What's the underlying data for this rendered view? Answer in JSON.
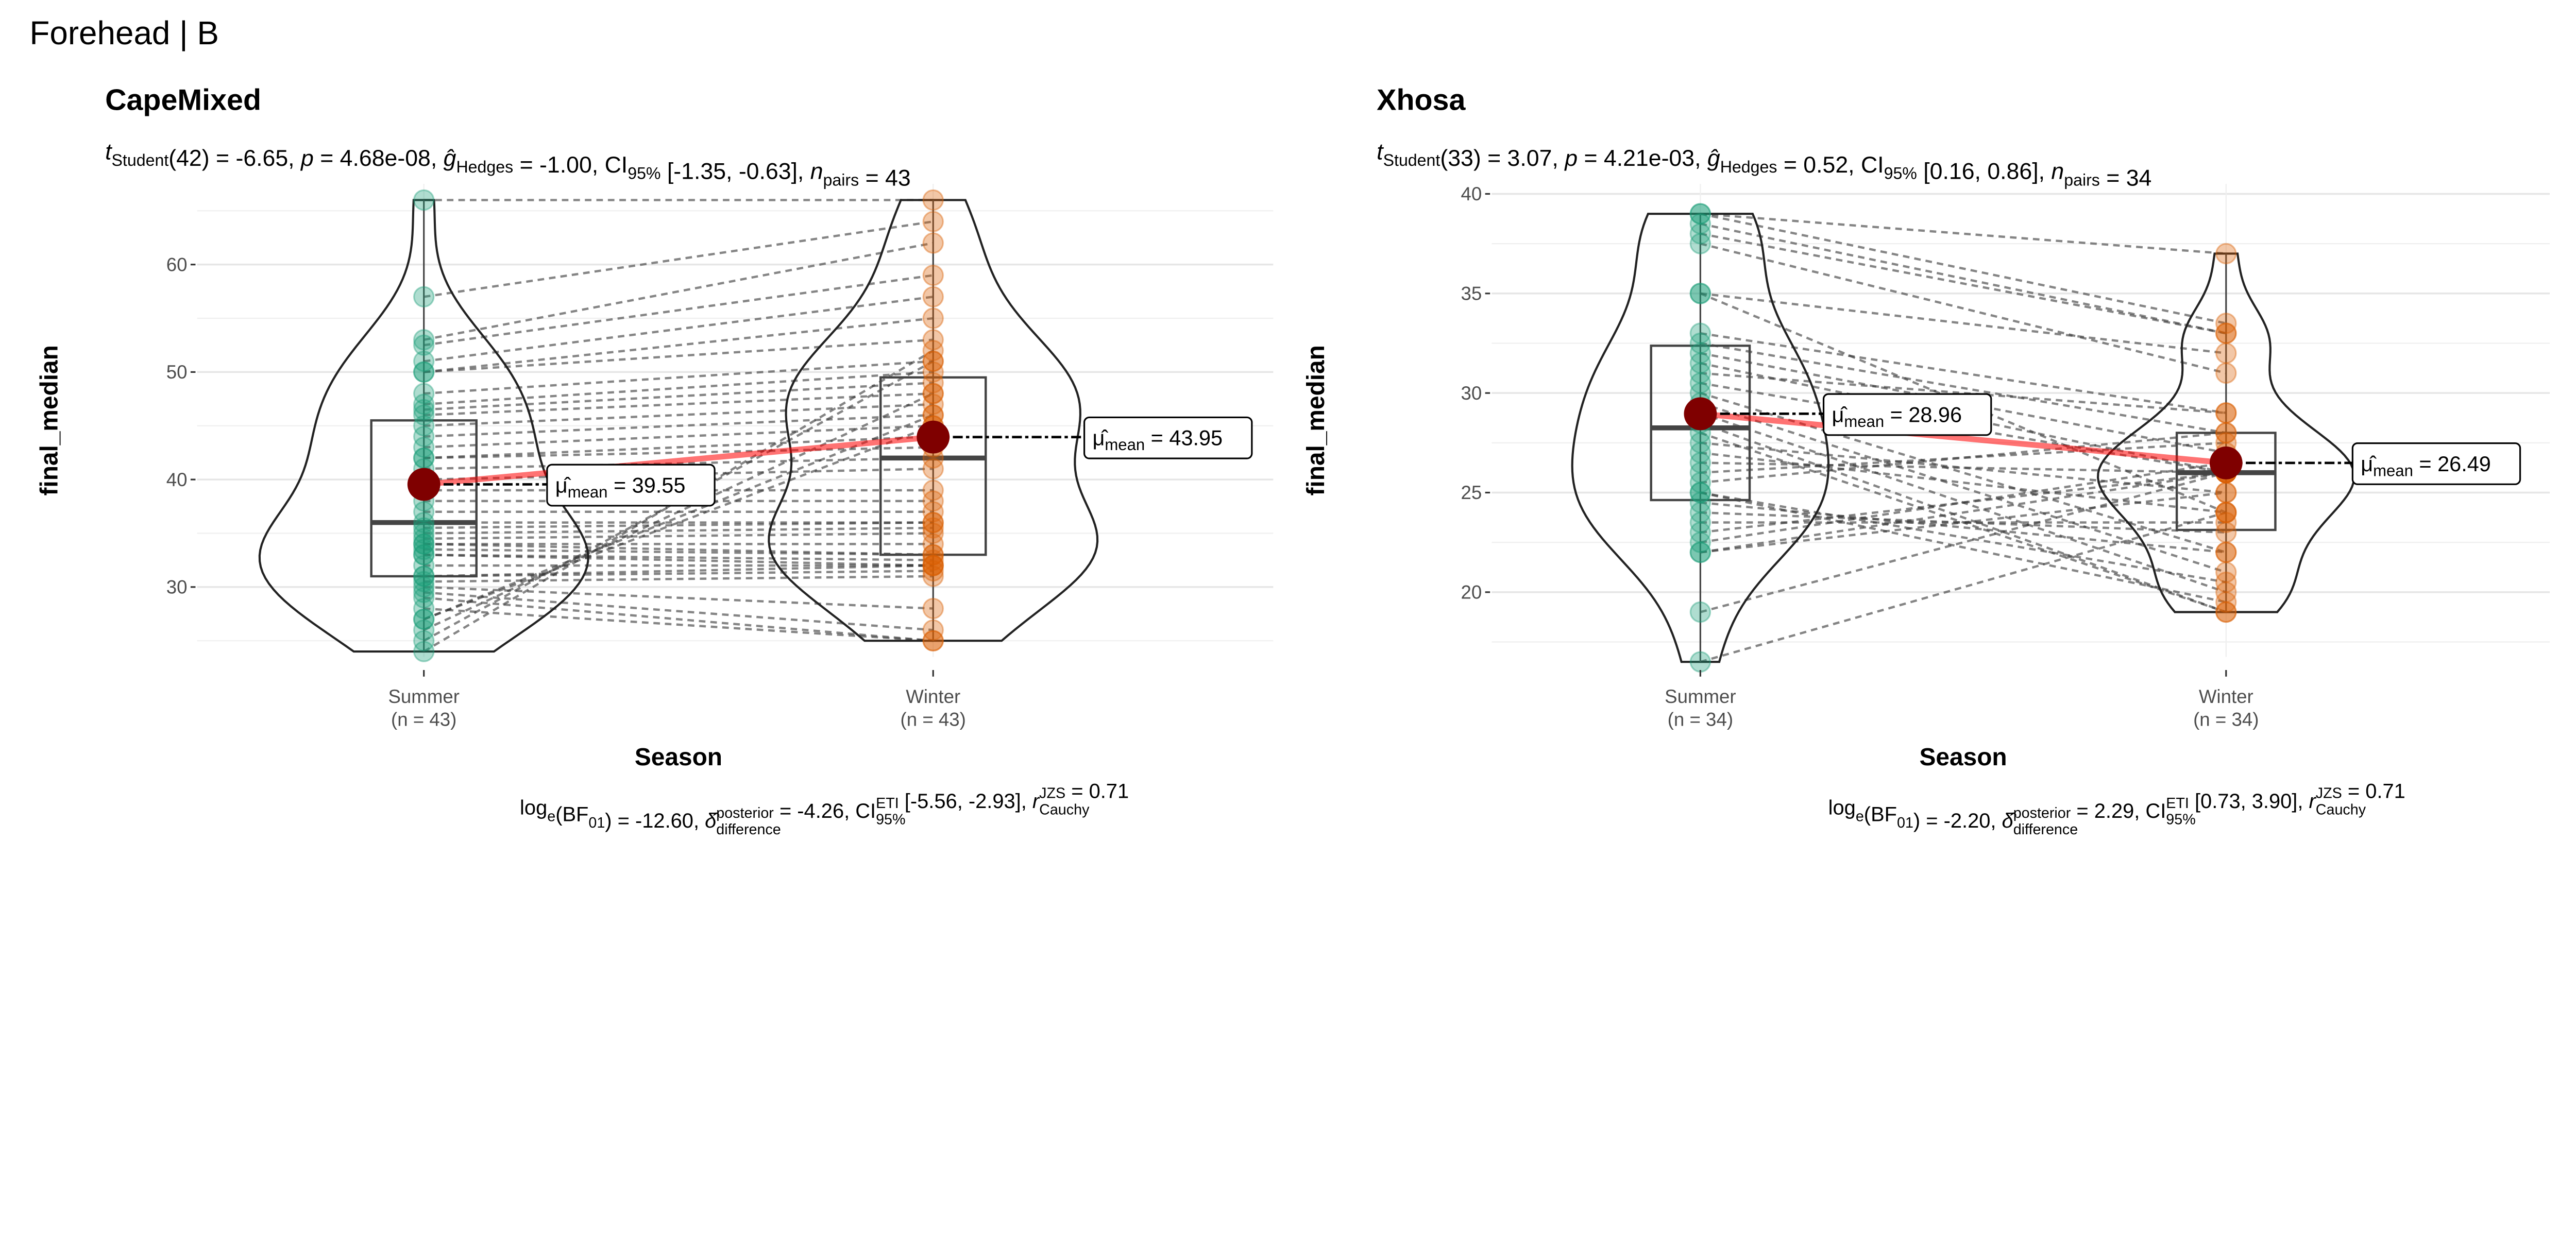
{
  "figure_title": "Forehead | B",
  "colors": {
    "summer": "#1B9E77",
    "winter": "#D95F02",
    "mean_point": "#7F0000",
    "mean_line": "#FF0000"
  },
  "chart_data": [
    {
      "type": "violin-box-paired",
      "title": "CapeMixed",
      "subtitle": [
        {
          "t": "t",
          "i": true
        },
        {
          "t": "Student",
          "sub": true
        },
        {
          "t": "(42) = -6.65, "
        },
        {
          "t": "p",
          "i": true
        },
        {
          "t": " = 4.68e-08, "
        },
        {
          "t": "ĝ",
          "i": true
        },
        {
          "t": "Hedges",
          "sub": true
        },
        {
          "t": " = -1.00, CI"
        },
        {
          "t": "95%",
          "sub": true
        },
        {
          "t": " [-1.35, -0.63], "
        },
        {
          "t": "n",
          "i": true
        },
        {
          "t": "pairs",
          "sub": true
        },
        {
          "t": " = 43"
        }
      ],
      "caption": [
        {
          "t": "log"
        },
        {
          "t": "e",
          "sub": true
        },
        {
          "t": "(BF"
        },
        {
          "t": "01",
          "sub": true
        },
        {
          "t": ") = -12.60, "
        },
        {
          "t": "δ̂",
          "i": true
        },
        {
          "sup": "posterior",
          "sub": "difference"
        },
        {
          "t": " = -4.26, CI"
        },
        {
          "sup": "ETI",
          "sub": "95%"
        },
        {
          "t": " [-5.56, -2.93], "
        },
        {
          "t": "r",
          "i": true
        },
        {
          "sup": "JZS",
          "sub": "Cauchy"
        },
        {
          "t": " = 0.71"
        }
      ],
      "xlabel": "Season",
      "ylabel": "final_median",
      "categories": [
        "Summer",
        "Winter"
      ],
      "n_labels": [
        "(n = 43)",
        "(n = 43)"
      ],
      "yticks": [
        30,
        40,
        50,
        60
      ],
      "ylim": [
        23.5,
        67.5
      ],
      "means": [
        39.55,
        43.95
      ],
      "mean_labels": [
        "= 39.55",
        "= 43.95"
      ],
      "mean_label_sub": "mean",
      "pairs": [
        [
          66,
          66
        ],
        [
          57,
          64
        ],
        [
          53,
          62
        ],
        [
          52.5,
          59
        ],
        [
          51,
          57
        ],
        [
          50,
          55
        ],
        [
          50,
          53
        ],
        [
          48,
          51
        ],
        [
          47,
          50
        ],
        [
          46.5,
          49
        ],
        [
          46,
          48
        ],
        [
          45,
          47
        ],
        [
          44,
          46
        ],
        [
          43,
          45
        ],
        [
          42,
          44
        ],
        [
          42,
          43
        ],
        [
          41,
          42
        ],
        [
          40,
          41
        ],
        [
          39,
          39
        ],
        [
          38,
          38
        ],
        [
          37,
          37
        ],
        [
          36,
          36
        ],
        [
          35.5,
          36
        ],
        [
          35,
          35.5
        ],
        [
          34.5,
          35
        ],
        [
          34,
          34
        ],
        [
          34,
          33
        ],
        [
          33.5,
          33
        ],
        [
          33,
          32.5
        ],
        [
          33,
          32
        ],
        [
          32,
          32
        ],
        [
          31,
          32
        ],
        [
          31,
          31.5
        ],
        [
          30.5,
          31
        ],
        [
          30,
          28
        ],
        [
          29.5,
          26
        ],
        [
          29,
          25
        ],
        [
          28,
          25
        ],
        [
          27,
          45
        ],
        [
          27,
          46
        ],
        [
          26,
          48
        ],
        [
          25,
          51
        ],
        [
          24,
          52
        ]
      ]
    },
    {
      "type": "violin-box-paired",
      "title": "Xhosa",
      "subtitle": [
        {
          "t": "t",
          "i": true
        },
        {
          "t": "Student",
          "sub": true
        },
        {
          "t": "(33) = 3.07, "
        },
        {
          "t": "p",
          "i": true
        },
        {
          "t": " = 4.21e-03, "
        },
        {
          "t": "ĝ",
          "i": true
        },
        {
          "t": "Hedges",
          "sub": true
        },
        {
          "t": " = 0.52, CI"
        },
        {
          "t": "95%",
          "sub": true
        },
        {
          "t": " [0.16, 0.86], "
        },
        {
          "t": "n",
          "i": true
        },
        {
          "t": "pairs",
          "sub": true
        },
        {
          "t": " = 34"
        }
      ],
      "caption": [
        {
          "t": "log"
        },
        {
          "t": "e",
          "sub": true
        },
        {
          "t": "(BF"
        },
        {
          "t": "01",
          "sub": true
        },
        {
          "t": ") = -2.20, "
        },
        {
          "t": "δ̂",
          "i": true
        },
        {
          "sup": "posterior",
          "sub": "difference"
        },
        {
          "t": " = 2.29, CI"
        },
        {
          "sup": "ETI",
          "sub": "95%"
        },
        {
          "t": " [0.73, 3.90], "
        },
        {
          "t": "r",
          "i": true
        },
        {
          "sup": "JZS",
          "sub": "Cauchy"
        },
        {
          "t": " = 0.71"
        }
      ],
      "xlabel": "Season",
      "ylabel": "final_median",
      "categories": [
        "Summer",
        "Winter"
      ],
      "n_labels": [
        "(n = 34)",
        "(n = 34)"
      ],
      "yticks": [
        20,
        25,
        30,
        35,
        40
      ],
      "ylim": [
        16.75,
        40.5
      ],
      "means": [
        28.96,
        26.49
      ],
      "mean_labels": [
        "= 28.96",
        "= 26.49"
      ],
      "mean_label_sub": "mean",
      "pairs": [
        [
          39,
          37
        ],
        [
          39,
          33.5
        ],
        [
          38.5,
          33
        ],
        [
          38,
          33
        ],
        [
          37.5,
          31
        ],
        [
          35,
          32
        ],
        [
          35,
          24
        ],
        [
          33,
          29
        ],
        [
          32.5,
          28
        ],
        [
          32,
          27
        ],
        [
          31.5,
          26
        ],
        [
          31,
          29
        ],
        [
          30.5,
          26
        ],
        [
          30,
          22
        ],
        [
          29.5,
          21
        ],
        [
          29,
          20
        ],
        [
          28.5,
          19
        ],
        [
          28,
          19
        ],
        [
          27.5,
          25
        ],
        [
          27,
          24
        ],
        [
          26.5,
          26
        ],
        [
          26,
          27.5
        ],
        [
          25.5,
          28
        ],
        [
          25,
          20.5
        ],
        [
          24.5,
          22
        ],
        [
          24,
          23
        ],
        [
          23.5,
          23.5
        ],
        [
          23,
          26
        ],
        [
          22.5,
          26.5
        ],
        [
          22,
          26
        ],
        [
          22,
          25
        ],
        [
          19,
          26
        ],
        [
          16.5,
          24
        ],
        [
          25,
          19.5
        ]
      ]
    }
  ]
}
